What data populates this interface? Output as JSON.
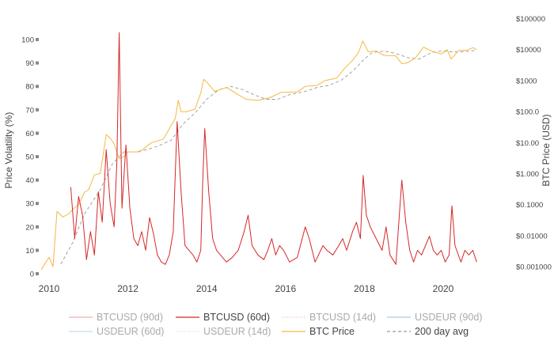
{
  "chart_data": {
    "type": "line",
    "y_left": {
      "label": "Price Volatility (%)",
      "ticks": [
        "0",
        "10",
        "20",
        "30",
        "40",
        "50",
        "60",
        "70",
        "80",
        "90",
        "100"
      ],
      "range": [
        0,
        100
      ]
    },
    "y_right": {
      "label": "BTC Price (USD)",
      "scale": "log",
      "ticks": [
        "$0.001000",
        "$0.01000",
        "$0.1000",
        "$1.000",
        "$10.00",
        "$100.0",
        "$1000",
        "$10000",
        "$100000"
      ],
      "range": [
        0.001,
        100000
      ]
    },
    "x_axis": {
      "ticks": [
        "2010",
        "2012",
        "2014",
        "2016",
        "2018",
        "2020"
      ],
      "range": [
        "2009-10",
        "2020-10"
      ]
    },
    "legend_placement": "bottom",
    "grid": false,
    "legend": [
      {
        "name": "BTCUSD (90d)",
        "color": "#e77b7b",
        "style": "solid",
        "visible": false
      },
      {
        "name": "BTCUSD (60d)",
        "color": "#d62728",
        "style": "solid",
        "visible": true
      },
      {
        "name": "BTCUSD (14d)",
        "color": "#e7a0a0",
        "style": "dotted",
        "visible": false
      },
      {
        "name": "USDEUR (90d)",
        "color": "#6fa8dc",
        "style": "solid",
        "visible": false
      },
      {
        "name": "USDEUR (60d)",
        "color": "#9fc5e8",
        "style": "solid",
        "visible": false
      },
      {
        "name": "USDEUR (14d)",
        "color": "#b7cfe8",
        "style": "dotted",
        "visible": false
      },
      {
        "name": "BTC Price",
        "color": "#f5b841",
        "style": "solid",
        "visible": true
      },
      {
        "name": "200 day avg",
        "color": "#999999",
        "style": "dashed",
        "visible": true
      }
    ],
    "series": [
      {
        "name": "BTCUSD (60d)",
        "axis": "left",
        "points": [
          [
            2010.55,
            37
          ],
          [
            2010.65,
            15
          ],
          [
            2010.75,
            33
          ],
          [
            2010.85,
            25
          ],
          [
            2010.95,
            6
          ],
          [
            2011.05,
            18
          ],
          [
            2011.15,
            8
          ],
          [
            2011.25,
            35
          ],
          [
            2011.35,
            22
          ],
          [
            2011.45,
            53
          ],
          [
            2011.55,
            30
          ],
          [
            2011.65,
            20
          ],
          [
            2011.72,
            48
          ],
          [
            2011.78,
            103
          ],
          [
            2011.85,
            28
          ],
          [
            2011.95,
            55
          ],
          [
            2012.05,
            28
          ],
          [
            2012.15,
            15
          ],
          [
            2012.25,
            12
          ],
          [
            2012.35,
            18
          ],
          [
            2012.45,
            10
          ],
          [
            2012.55,
            24
          ],
          [
            2012.65,
            17
          ],
          [
            2012.75,
            8
          ],
          [
            2012.85,
            5
          ],
          [
            2012.95,
            4
          ],
          [
            2013.05,
            8
          ],
          [
            2013.15,
            18
          ],
          [
            2013.25,
            65
          ],
          [
            2013.35,
            35
          ],
          [
            2013.45,
            12
          ],
          [
            2013.55,
            10
          ],
          [
            2013.65,
            8
          ],
          [
            2013.75,
            5
          ],
          [
            2013.85,
            10
          ],
          [
            2013.9,
            40
          ],
          [
            2013.95,
            62
          ],
          [
            2014.05,
            35
          ],
          [
            2014.15,
            15
          ],
          [
            2014.25,
            10
          ],
          [
            2014.35,
            8
          ],
          [
            2014.5,
            5
          ],
          [
            2014.65,
            7
          ],
          [
            2014.8,
            10
          ],
          [
            2014.95,
            18
          ],
          [
            2015.05,
            25
          ],
          [
            2015.15,
            12
          ],
          [
            2015.3,
            8
          ],
          [
            2015.45,
            6
          ],
          [
            2015.55,
            10
          ],
          [
            2015.65,
            15
          ],
          [
            2015.75,
            8
          ],
          [
            2015.85,
            12
          ],
          [
            2015.95,
            10
          ],
          [
            2016.1,
            5
          ],
          [
            2016.3,
            7
          ],
          [
            2016.5,
            20
          ],
          [
            2016.6,
            15
          ],
          [
            2016.75,
            5
          ],
          [
            2016.95,
            12
          ],
          [
            2017.05,
            10
          ],
          [
            2017.2,
            8
          ],
          [
            2017.35,
            12
          ],
          [
            2017.45,
            15
          ],
          [
            2017.55,
            10
          ],
          [
            2017.7,
            18
          ],
          [
            2017.8,
            22
          ],
          [
            2017.9,
            15
          ],
          [
            2017.97,
            42
          ],
          [
            2018.05,
            25
          ],
          [
            2018.15,
            20
          ],
          [
            2018.3,
            15
          ],
          [
            2018.45,
            10
          ],
          [
            2018.55,
            20
          ],
          [
            2018.65,
            8
          ],
          [
            2018.8,
            4
          ],
          [
            2018.95,
            40
          ],
          [
            2019.05,
            22
          ],
          [
            2019.15,
            10
          ],
          [
            2019.25,
            5
          ],
          [
            2019.35,
            10
          ],
          [
            2019.45,
            8
          ],
          [
            2019.55,
            12
          ],
          [
            2019.65,
            16
          ],
          [
            2019.75,
            10
          ],
          [
            2019.85,
            8
          ],
          [
            2019.95,
            10
          ],
          [
            2020.05,
            5
          ],
          [
            2020.15,
            8
          ],
          [
            2020.22,
            29
          ],
          [
            2020.3,
            12
          ],
          [
            2020.45,
            5
          ],
          [
            2020.55,
            10
          ],
          [
            2020.65,
            8
          ],
          [
            2020.75,
            10
          ],
          [
            2020.85,
            5
          ]
        ]
      },
      {
        "name": "BTC Price",
        "axis": "right",
        "points": [
          [
            2009.8,
            0.0008
          ],
          [
            2010.0,
            0.002
          ],
          [
            2010.1,
            0.001
          ],
          [
            2010.2,
            0.06
          ],
          [
            2010.35,
            0.04
          ],
          [
            2010.5,
            0.05
          ],
          [
            2010.6,
            0.07
          ],
          [
            2010.75,
            0.1
          ],
          [
            2010.9,
            0.25
          ],
          [
            2011.0,
            0.3
          ],
          [
            2011.15,
            0.9
          ],
          [
            2011.3,
            1.0
          ],
          [
            2011.45,
            18
          ],
          [
            2011.55,
            14
          ],
          [
            2011.65,
            9
          ],
          [
            2011.78,
            3
          ],
          [
            2011.9,
            3.5
          ],
          [
            2012.0,
            5
          ],
          [
            2012.3,
            5
          ],
          [
            2012.6,
            10
          ],
          [
            2012.9,
            13
          ],
          [
            2013.2,
            60
          ],
          [
            2013.28,
            230
          ],
          [
            2013.35,
            100
          ],
          [
            2013.5,
            100
          ],
          [
            2013.7,
            120
          ],
          [
            2013.85,
            400
          ],
          [
            2013.92,
            1100
          ],
          [
            2014.0,
            900
          ],
          [
            2014.2,
            450
          ],
          [
            2014.5,
            600
          ],
          [
            2014.8,
            350
          ],
          [
            2015.0,
            250
          ],
          [
            2015.3,
            230
          ],
          [
            2015.6,
            280
          ],
          [
            2015.9,
            420
          ],
          [
            2016.3,
            430
          ],
          [
            2016.5,
            650
          ],
          [
            2016.8,
            700
          ],
          [
            2017.0,
            1000
          ],
          [
            2017.3,
            1200
          ],
          [
            2017.5,
            2500
          ],
          [
            2017.7,
            4500
          ],
          [
            2017.85,
            8000
          ],
          [
            2017.96,
            19000
          ],
          [
            2018.1,
            8500
          ],
          [
            2018.3,
            9000
          ],
          [
            2018.5,
            6500
          ],
          [
            2018.8,
            6300
          ],
          [
            2018.95,
            3500
          ],
          [
            2019.1,
            3800
          ],
          [
            2019.3,
            5500
          ],
          [
            2019.5,
            12000
          ],
          [
            2019.7,
            9000
          ],
          [
            2019.95,
            7200
          ],
          [
            2020.1,
            10000
          ],
          [
            2020.2,
            5000
          ],
          [
            2020.4,
            9500
          ],
          [
            2020.6,
            9500
          ],
          [
            2020.75,
            11500
          ],
          [
            2020.85,
            10000
          ]
        ]
      },
      {
        "name": "200 day avg",
        "axis": "right",
        "points": [
          [
            2010.3,
            0.0012
          ],
          [
            2010.6,
            0.006
          ],
          [
            2010.9,
            0.05
          ],
          [
            2011.3,
            0.3
          ],
          [
            2011.6,
            2
          ],
          [
            2011.9,
            5
          ],
          [
            2012.2,
            5
          ],
          [
            2012.5,
            6
          ],
          [
            2012.8,
            8
          ],
          [
            2013.1,
            12
          ],
          [
            2013.4,
            40
          ],
          [
            2013.7,
            90
          ],
          [
            2014.0,
            250
          ],
          [
            2014.3,
            500
          ],
          [
            2014.6,
            650
          ],
          [
            2014.9,
            520
          ],
          [
            2015.2,
            350
          ],
          [
            2015.5,
            250
          ],
          [
            2015.8,
            250
          ],
          [
            2016.1,
            350
          ],
          [
            2016.5,
            450
          ],
          [
            2016.8,
            600
          ],
          [
            2017.1,
            700
          ],
          [
            2017.4,
            1000
          ],
          [
            2017.7,
            2000
          ],
          [
            2018.0,
            5000
          ],
          [
            2018.2,
            8000
          ],
          [
            2018.5,
            9000
          ],
          [
            2018.8,
            7500
          ],
          [
            2019.1,
            5500
          ],
          [
            2019.4,
            5000
          ],
          [
            2019.7,
            8000
          ],
          [
            2019.95,
            9000
          ],
          [
            2020.2,
            8500
          ],
          [
            2020.5,
            8500
          ],
          [
            2020.85,
            9500
          ]
        ]
      }
    ]
  }
}
